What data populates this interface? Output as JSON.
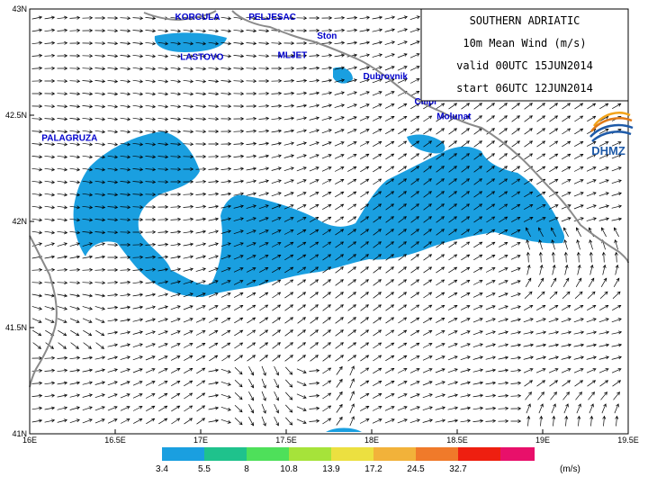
{
  "info": {
    "region": "SOUTHERN ADRIATIC",
    "variable": "10m Mean Wind (m/s)",
    "valid": "valid 00UTC 15JUN2014",
    "start": "start 06UTC 12JUN2014"
  },
  "logo": {
    "text": "DHMZ"
  },
  "places": [
    {
      "name": "KORCULA",
      "lon": 16.85,
      "lat": 42.95
    },
    {
      "name": "PELJESAC",
      "lon": 17.28,
      "lat": 42.95
    },
    {
      "name": "LASTOVO",
      "lon": 16.88,
      "lat": 42.76
    },
    {
      "name": "MLJET",
      "lon": 17.45,
      "lat": 42.77
    },
    {
      "name": "Ston",
      "lon": 17.68,
      "lat": 42.86
    },
    {
      "name": "Dubrovnik",
      "lon": 17.95,
      "lat": 42.67
    },
    {
      "name": "Cilipi",
      "lon": 18.25,
      "lat": 42.55
    },
    {
      "name": "Molunat",
      "lon": 18.38,
      "lat": 42.48
    },
    {
      "name": "PALAGRUZA",
      "lon": 16.07,
      "lat": 42.38
    }
  ],
  "axes": {
    "lon_range": [
      16.0,
      19.5
    ],
    "lat_range": [
      41.0,
      43.0
    ],
    "lon_ticks": [
      "16E",
      "16.5E",
      "17E",
      "17.5E",
      "18E",
      "18.5E",
      "19E",
      "19.5E"
    ],
    "lat_ticks": [
      "43N",
      "42.5N",
      "42N",
      "41.5N",
      "41N"
    ]
  },
  "legend": {
    "unit": "(m/s)",
    "bins": [
      {
        "label": "3.4",
        "color": "#1a9fe0"
      },
      {
        "label": "5.5",
        "color": "#1fc28c"
      },
      {
        "label": "8",
        "color": "#4ee05a"
      },
      {
        "label": "10.8",
        "color": "#a6e33a"
      },
      {
        "label": "13.9",
        "color": "#ece040"
      },
      {
        "label": "17.2",
        "color": "#f2b23a"
      },
      {
        "label": "24.5",
        "color": "#f07a2a"
      },
      {
        "label": "32.7",
        "color": "#ee1f10"
      },
      {
        "label": "",
        "color": "#e8106a"
      }
    ]
  }
}
